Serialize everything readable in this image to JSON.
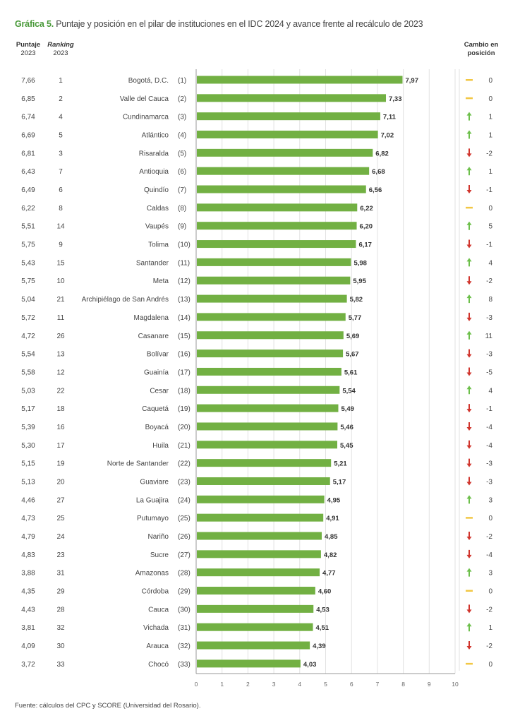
{
  "title_prefix": "Gráfica 5.",
  "title": "Puntaje y posición en el pilar de instituciones en el IDC 2024 y avance frente al recálculo de 2023",
  "headers": {
    "puntaje": "Puntaje",
    "puntaje_year": "2023",
    "ranking": "Ranking",
    "ranking_year": "2023",
    "cambio1": "Cambio en",
    "cambio2": "posición"
  },
  "source": "Fuente: cálculos del CPC y SCORE (Universidad del Rosario).",
  "colors": {
    "bar": "#72b043",
    "up": "#6cbf4a",
    "down": "#d0342c",
    "same": "#f2c744",
    "grid": "#e2e2e2"
  },
  "chart_data": {
    "type": "bar",
    "orientation": "horizontal",
    "xlim": [
      0,
      10
    ],
    "xticks": [
      "0",
      "1",
      "2",
      "3",
      "4",
      "5",
      "6",
      "7",
      "8",
      "9",
      "10"
    ],
    "grid": true,
    "rows": [
      {
        "name": "Bogotá, D.C.",
        "rank": "(1)",
        "value": 7.97,
        "label": "7,97",
        "p2023": "7,66",
        "r2023": "1",
        "change": 0
      },
      {
        "name": "Valle del Cauca",
        "rank": "(2)",
        "value": 7.33,
        "label": "7,33",
        "p2023": "6,85",
        "r2023": "2",
        "change": 0
      },
      {
        "name": "Cundinamarca",
        "rank": "(3)",
        "value": 7.11,
        "label": "7,11",
        "p2023": "6,74",
        "r2023": "4",
        "change": 1
      },
      {
        "name": "Atlántico",
        "rank": "(4)",
        "value": 7.02,
        "label": "7,02",
        "p2023": "6,69",
        "r2023": "5",
        "change": 1
      },
      {
        "name": "Risaralda",
        "rank": "(5)",
        "value": 6.82,
        "label": "6,82",
        "p2023": "6,81",
        "r2023": "3",
        "change": -2
      },
      {
        "name": "Antioquia",
        "rank": "(6)",
        "value": 6.68,
        "label": "6,68",
        "p2023": "6,43",
        "r2023": "7",
        "change": 1
      },
      {
        "name": "Quindío",
        "rank": "(7)",
        "value": 6.56,
        "label": "6,56",
        "p2023": "6,49",
        "r2023": "6",
        "change": -1
      },
      {
        "name": "Caldas",
        "rank": "(8)",
        "value": 6.22,
        "label": "6,22",
        "p2023": "6,22",
        "r2023": "8",
        "change": 0
      },
      {
        "name": "Vaupés",
        "rank": "(9)",
        "value": 6.2,
        "label": "6,20",
        "p2023": "5,51",
        "r2023": "14",
        "change": 5
      },
      {
        "name": "Tolima",
        "rank": "(10)",
        "value": 6.17,
        "label": "6,17",
        "p2023": "5,75",
        "r2023": "9",
        "change": -1
      },
      {
        "name": "Santander",
        "rank": "(11)",
        "value": 5.98,
        "label": "5,98",
        "p2023": "5,43",
        "r2023": "15",
        "change": 4
      },
      {
        "name": "Meta",
        "rank": "(12)",
        "value": 5.95,
        "label": "5,95",
        "p2023": "5,75",
        "r2023": "10",
        "change": -2
      },
      {
        "name": "Archipiélago de San Andrés",
        "rank": "(13)",
        "value": 5.82,
        "label": "5,82",
        "p2023": "5,04",
        "r2023": "21",
        "change": 8
      },
      {
        "name": "Magdalena",
        "rank": "(14)",
        "value": 5.77,
        "label": "5,77",
        "p2023": "5,72",
        "r2023": "11",
        "change": -3
      },
      {
        "name": "Casanare",
        "rank": "(15)",
        "value": 5.69,
        "label": "5,69",
        "p2023": "4,72",
        "r2023": "26",
        "change": 11
      },
      {
        "name": "Bolívar",
        "rank": "(16)",
        "value": 5.67,
        "label": "5,67",
        "p2023": "5,54",
        "r2023": "13",
        "change": -3
      },
      {
        "name": "Guainía",
        "rank": "(17)",
        "value": 5.61,
        "label": "5,61",
        "p2023": "5,58",
        "r2023": "12",
        "change": -5
      },
      {
        "name": "Cesar",
        "rank": "(18)",
        "value": 5.54,
        "label": "5,54",
        "p2023": "5,03",
        "r2023": "22",
        "change": 4
      },
      {
        "name": "Caquetá",
        "rank": "(19)",
        "value": 5.49,
        "label": "5,49",
        "p2023": "5,17",
        "r2023": "18",
        "change": -1
      },
      {
        "name": "Boyacá",
        "rank": "(20)",
        "value": 5.46,
        "label": "5,46",
        "p2023": "5,39",
        "r2023": "16",
        "change": -4
      },
      {
        "name": "Huila",
        "rank": "(21)",
        "value": 5.45,
        "label": "5,45",
        "p2023": "5,30",
        "r2023": "17",
        "change": -4
      },
      {
        "name": "Norte de Santander",
        "rank": "(22)",
        "value": 5.21,
        "label": "5,21",
        "p2023": "5,15",
        "r2023": "19",
        "change": -3
      },
      {
        "name": "Guaviare",
        "rank": "(23)",
        "value": 5.17,
        "label": "5,17",
        "p2023": "5,13",
        "r2023": "20",
        "change": -3
      },
      {
        "name": "La Guajira",
        "rank": "(24)",
        "value": 4.95,
        "label": "4,95",
        "p2023": "4,46",
        "r2023": "27",
        "change": 3
      },
      {
        "name": "Putumayo",
        "rank": "(25)",
        "value": 4.91,
        "label": "4,91",
        "p2023": "4,73",
        "r2023": "25",
        "change": 0
      },
      {
        "name": "Nariño",
        "rank": "(26)",
        "value": 4.85,
        "label": "4,85",
        "p2023": "4,79",
        "r2023": "24",
        "change": -2
      },
      {
        "name": "Sucre",
        "rank": "(27)",
        "value": 4.82,
        "label": "4,82",
        "p2023": "4,83",
        "r2023": "23",
        "change": -4
      },
      {
        "name": "Amazonas",
        "rank": "(28)",
        "value": 4.77,
        "label": "4,77",
        "p2023": "3,88",
        "r2023": "31",
        "change": 3
      },
      {
        "name": "Córdoba",
        "rank": "(29)",
        "value": 4.6,
        "label": "4,60",
        "p2023": "4,35",
        "r2023": "29",
        "change": 0
      },
      {
        "name": "Cauca",
        "rank": "(30)",
        "value": 4.53,
        "label": "4,53",
        "p2023": "4,43",
        "r2023": "28",
        "change": -2
      },
      {
        "name": "Vichada",
        "rank": "(31)",
        "value": 4.51,
        "label": "4,51",
        "p2023": "3,81",
        "r2023": "32",
        "change": 1
      },
      {
        "name": "Arauca",
        "rank": "(32)",
        "value": 4.39,
        "label": "4,39",
        "p2023": "4,09",
        "r2023": "30",
        "change": -2
      },
      {
        "name": "Chocó",
        "rank": "(33)",
        "value": 4.03,
        "label": "4,03",
        "p2023": "3,72",
        "r2023": "33",
        "change": 0
      }
    ]
  }
}
